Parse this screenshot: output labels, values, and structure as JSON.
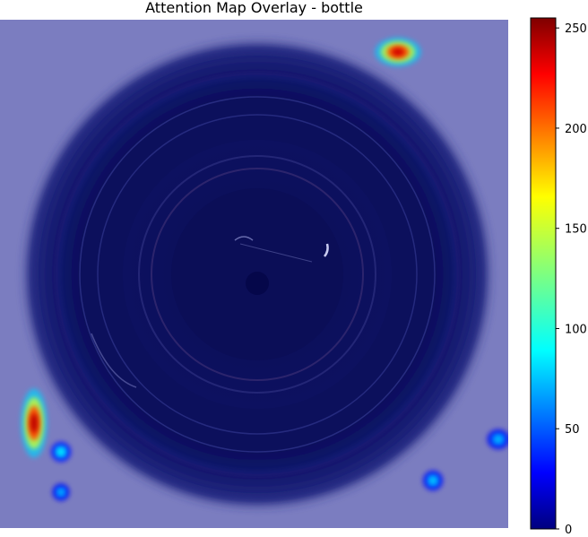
{
  "chart_data": {
    "type": "heatmap",
    "title": "Attention Map Overlay - bottle",
    "colormap": "jet",
    "overlay_base": "bottle top-view image",
    "axes_visible": false,
    "colorbar": {
      "range": [
        0,
        255
      ],
      "ticks": [
        "0",
        "50",
        "100",
        "150",
        "200",
        "250"
      ],
      "tick_values": [
        0,
        50,
        100,
        150,
        200,
        250
      ],
      "placement": "right"
    },
    "hotspots": [
      {
        "region": "top-right",
        "intensity": 235
      },
      {
        "region": "left-lower",
        "intensity": 240
      },
      {
        "region": "bottom-left",
        "intensity": 95
      },
      {
        "region": "bottom-left",
        "intensity": 80
      },
      {
        "region": "bottom-right",
        "intensity": 85
      },
      {
        "region": "bottom-right",
        "intensity": 80
      }
    ]
  }
}
